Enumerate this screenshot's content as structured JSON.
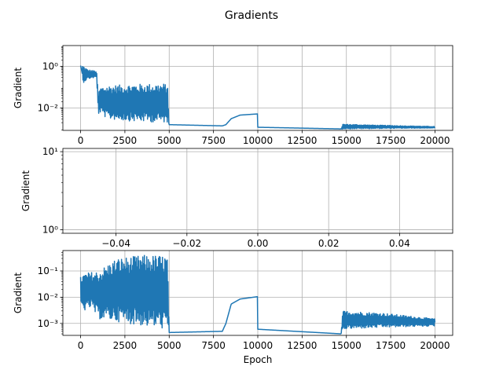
{
  "figure": {
    "title": "Gradients",
    "line_color": "#1f77b4",
    "grid_color": "#b0b0b0"
  },
  "chart_data": [
    {
      "type": "line",
      "title": "",
      "xlabel": "",
      "ylabel": "Gradient",
      "yscale": "log",
      "grid": true,
      "xlim": [
        -1000,
        21000
      ],
      "ylim": [
        0.00085,
        10
      ],
      "xticks": [
        0,
        2500,
        5000,
        7500,
        10000,
        12500,
        15000,
        17500,
        20000
      ],
      "xtick_labels": [
        "0",
        "2500",
        "5000",
        "7500",
        "10000",
        "12500",
        "15000",
        "17500",
        "20000"
      ],
      "yticks": [
        0.01,
        1
      ],
      "ytick_labels": [
        "10⁻²",
        "10⁰"
      ],
      "series": [
        {
          "envelope": [
            {
              "x": 0,
              "lo": 0.2,
              "hi": 6.0
            },
            {
              "x": 100,
              "lo": 0.15,
              "hi": 1.2
            },
            {
              "x": 400,
              "lo": 0.25,
              "hi": 0.7
            },
            {
              "x": 900,
              "lo": 0.3,
              "hi": 0.6
            },
            {
              "x": 1000,
              "lo": 0.005,
              "hi": 0.05
            },
            {
              "x": 1100,
              "lo": 0.006,
              "hi": 0.1
            },
            {
              "x": 1500,
              "lo": 0.003,
              "hi": 0.12
            },
            {
              "x": 3000,
              "lo": 0.0023,
              "hi": 0.14
            },
            {
              "x": 4900,
              "lo": 0.002,
              "hi": 0.15
            },
            {
              "x": 5000,
              "lo": 0.0016,
              "hi": 0.0016
            },
            {
              "x": 8000,
              "lo": 0.0014,
              "hi": 0.0014
            },
            {
              "x": 8200,
              "lo": 0.0016,
              "hi": 0.0016
            },
            {
              "x": 8500,
              "lo": 0.003,
              "hi": 0.0032
            },
            {
              "x": 9000,
              "lo": 0.0045,
              "hi": 0.0047
            },
            {
              "x": 9990,
              "lo": 0.005,
              "hi": 0.0055
            },
            {
              "x": 10000,
              "lo": 0.0012,
              "hi": 0.0012
            },
            {
              "x": 14700,
              "lo": 0.001,
              "hi": 0.001
            },
            {
              "x": 14800,
              "lo": 0.001,
              "hi": 0.0017
            },
            {
              "x": 17000,
              "lo": 0.00105,
              "hi": 0.0015
            },
            {
              "x": 20000,
              "lo": 0.0011,
              "hi": 0.0013
            }
          ],
          "oscillating_ranges": [
            [
              100,
              1000
            ],
            [
              1000,
              5000
            ],
            [
              14700,
              20000
            ]
          ]
        }
      ]
    },
    {
      "type": "line",
      "title": "",
      "xlabel": "",
      "ylabel": "Gradient",
      "yscale": "log",
      "grid": true,
      "xlim": [
        -0.055,
        0.055
      ],
      "ylim": [
        0.9,
        11
      ],
      "xticks": [
        -0.04,
        -0.02,
        0.0,
        0.02,
        0.04
      ],
      "xtick_labels": [
        "−0.04",
        "−0.02",
        "0.00",
        "0.02",
        "0.04"
      ],
      "yticks": [
        1,
        10
      ],
      "ytick_labels": [
        "10⁰",
        "10¹"
      ],
      "series": []
    },
    {
      "type": "line",
      "title": "",
      "xlabel": "Epoch",
      "ylabel": "Gradient",
      "yscale": "log",
      "grid": true,
      "xlim": [
        -1000,
        21000
      ],
      "ylim": [
        0.00035,
        0.6
      ],
      "xticks": [
        0,
        2500,
        5000,
        7500,
        10000,
        12500,
        15000,
        17500,
        20000
      ],
      "xtick_labels": [
        "0",
        "2500",
        "5000",
        "7500",
        "10000",
        "12500",
        "15000",
        "17500",
        "20000"
      ],
      "yticks": [
        0.001,
        0.01,
        0.1
      ],
      "ytick_labels": [
        "10⁻³",
        "10⁻²",
        "10⁻¹"
      ],
      "series": [
        {
          "envelope": [
            {
              "x": 0,
              "lo": 0.005,
              "hi": 0.06
            },
            {
              "x": 200,
              "lo": 0.003,
              "hi": 0.08
            },
            {
              "x": 600,
              "lo": 0.004,
              "hi": 0.09
            },
            {
              "x": 1000,
              "lo": 0.0015,
              "hi": 0.1
            },
            {
              "x": 2000,
              "lo": 0.0012,
              "hi": 0.3
            },
            {
              "x": 3500,
              "lo": 0.0008,
              "hi": 0.4
            },
            {
              "x": 4900,
              "lo": 0.0006,
              "hi": 0.4
            },
            {
              "x": 5000,
              "lo": 0.00045,
              "hi": 0.00045
            },
            {
              "x": 8000,
              "lo": 0.0005,
              "hi": 0.0005
            },
            {
              "x": 8200,
              "lo": 0.001,
              "hi": 0.001
            },
            {
              "x": 8500,
              "lo": 0.005,
              "hi": 0.006
            },
            {
              "x": 9000,
              "lo": 0.008,
              "hi": 0.009
            },
            {
              "x": 9990,
              "lo": 0.01,
              "hi": 0.011
            },
            {
              "x": 10000,
              "lo": 0.0006,
              "hi": 0.0006
            },
            {
              "x": 14700,
              "lo": 0.0004,
              "hi": 0.0004
            },
            {
              "x": 14800,
              "lo": 0.0006,
              "hi": 0.003
            },
            {
              "x": 17000,
              "lo": 0.0007,
              "hi": 0.0025
            },
            {
              "x": 20000,
              "lo": 0.0008,
              "hi": 0.0015
            }
          ],
          "oscillating_ranges": [
            [
              0,
              1000
            ],
            [
              1000,
              5000
            ],
            [
              14700,
              20000
            ]
          ]
        }
      ]
    }
  ]
}
